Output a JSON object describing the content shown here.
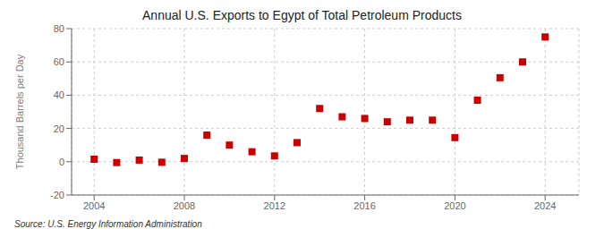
{
  "chart_data": {
    "type": "scatter",
    "title": "Annual U.S. Exports to Egypt of Total Petroleum Products",
    "y_label": "Thousand Barrels per Day",
    "annotation": "Source: U.S. Energy Information Administration",
    "x": [
      2004,
      2005,
      2006,
      2007,
      2008,
      2009,
      2010,
      2011,
      2012,
      2013,
      2014,
      2015,
      2016,
      2017,
      2018,
      2019,
      2020,
      2021,
      2022,
      2023,
      2024
    ],
    "values": [
      1.5,
      -0.5,
      1.0,
      -0.3,
      2.0,
      16.0,
      10.0,
      6.0,
      3.5,
      11.5,
      32.0,
      27.0,
      26.0,
      24.0,
      25.0,
      25.0,
      14.5,
      37.0,
      50.5,
      60.0,
      75.0
    ],
    "color": "#cc0000",
    "marker": "square",
    "grid": true,
    "xlim": [
      2003.0,
      2025.5
    ],
    "ylim": [
      -20,
      80
    ],
    "xticks": [
      2004,
      2008,
      2012,
      2016,
      2020,
      2024
    ],
    "yticks": [
      -20,
      0,
      20,
      40,
      60,
      80
    ]
  }
}
